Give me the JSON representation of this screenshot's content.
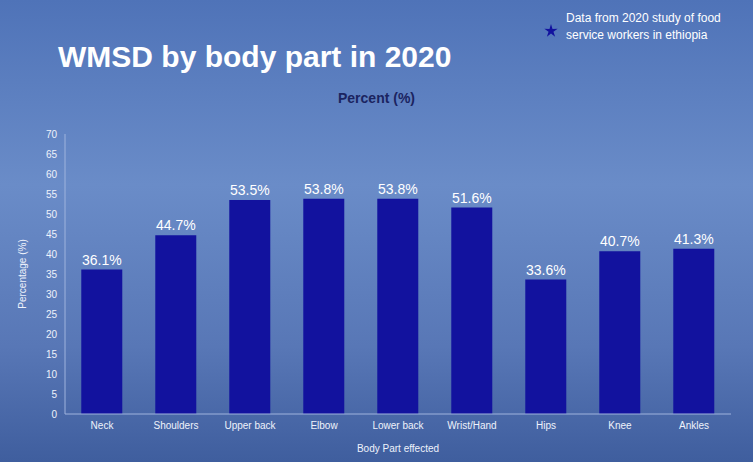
{
  "chart_data": {
    "type": "bar",
    "title": "WMSD by body part in 2020",
    "subtitle": "Percent (%)",
    "x_label": "Body Part effected",
    "y_label": "Percentage (%)",
    "categories": [
      "Neck",
      "Shoulders",
      "Upper back",
      "Elbow",
      "Lower back",
      "Wrist/Hand",
      "Hips",
      "Knee",
      "Ankles"
    ],
    "series": [
      {
        "name": "Data from 2020 study of food service workers in ethiopia",
        "color": "#12129e",
        "marker": "star",
        "values": [
          36.1,
          44.7,
          53.5,
          53.8,
          53.8,
          51.6,
          33.6,
          40.7,
          41.3
        ],
        "value_labels": [
          "36.1%",
          "44.7%",
          "53.5%",
          "53.8%",
          "53.8%",
          "51.6%",
          "33.6%",
          "40.7%",
          "41.3%"
        ]
      }
    ],
    "ylim": [
      0,
      70
    ],
    "yticks": [
      0,
      5,
      10,
      15,
      20,
      25,
      30,
      35,
      40,
      45,
      50,
      55,
      60,
      65,
      70
    ],
    "grid": false,
    "data_labels": true,
    "legend": "upper right"
  }
}
